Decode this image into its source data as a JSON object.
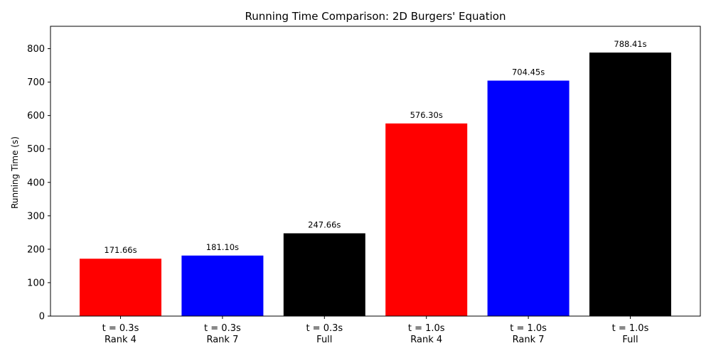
{
  "chart_data": {
    "type": "bar",
    "title": "Running Time Comparison: 2D Burgers' Equation",
    "xlabel": "",
    "ylabel": "Running Time (s)",
    "ylim": [
      0,
      867
    ],
    "yticks": [
      0,
      100,
      200,
      300,
      400,
      500,
      600,
      700,
      800
    ],
    "grid": false,
    "legend": "none",
    "categories": [
      [
        "t = 0.3s",
        "Rank 4"
      ],
      [
        "t = 0.3s",
        "Rank 7"
      ],
      [
        "t = 0.3s",
        "Full"
      ],
      [
        "t = 1.0s",
        "Rank 4"
      ],
      [
        "t = 1.0s",
        "Rank 7"
      ],
      [
        "t = 1.0s",
        "Full"
      ]
    ],
    "values": [
      171.66,
      181.1,
      247.66,
      576.3,
      704.45,
      788.41
    ],
    "data_labels": [
      "171.66s",
      "181.10s",
      "247.66s",
      "576.30s",
      "704.45s",
      "788.41s"
    ],
    "colors": [
      "#ff0000",
      "#0000ff",
      "#000000",
      "#ff0000",
      "#0000ff",
      "#000000"
    ]
  }
}
